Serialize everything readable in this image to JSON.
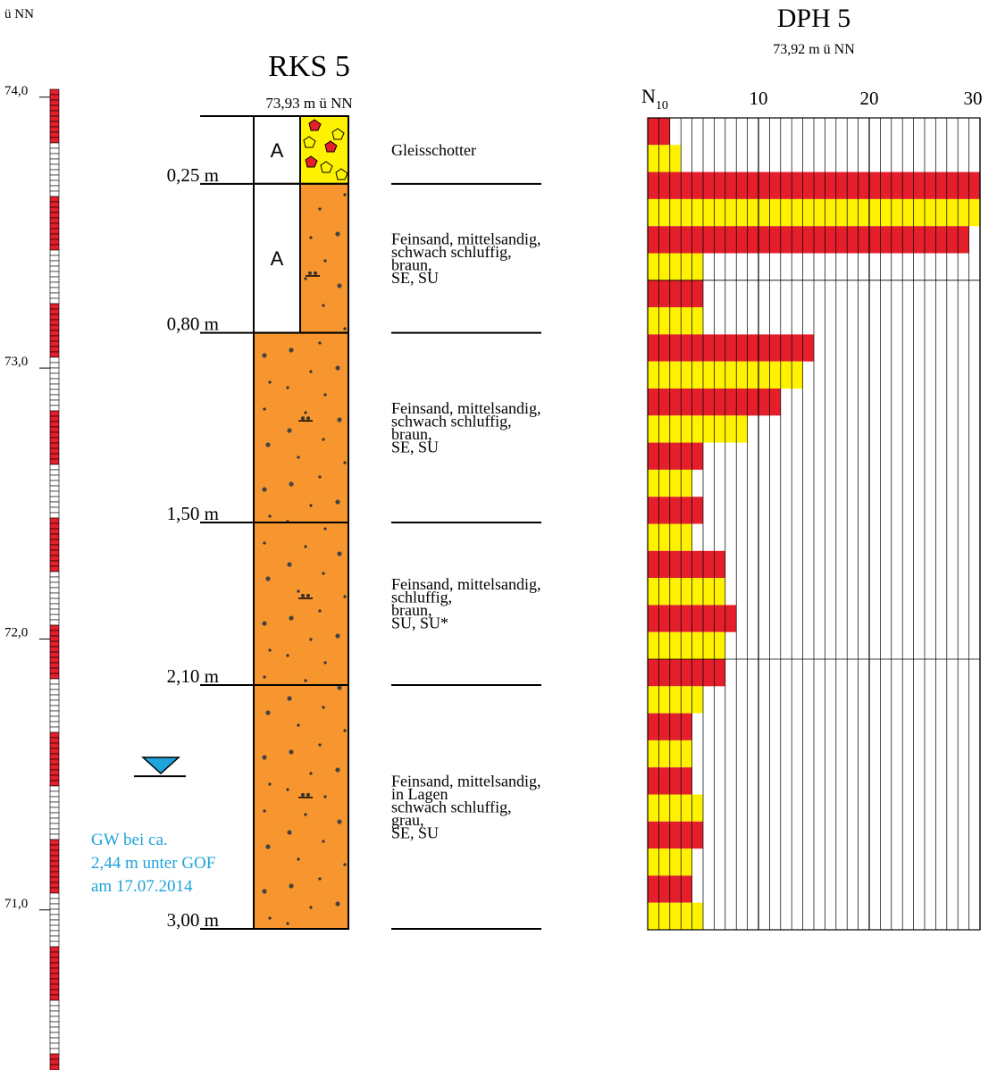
{
  "elevation_axis": {
    "unit_label": "ü NN",
    "ticks": [
      {
        "value": 74.0,
        "label": "74,0"
      },
      {
        "value": 73.0,
        "label": "73,0"
      },
      {
        "value": 72.0,
        "label": "72,0"
      },
      {
        "value": 71.0,
        "label": "71,0"
      }
    ]
  },
  "boring": {
    "title": "RKS 5",
    "elevation_label": "73,93 m ü NN",
    "layers": [
      {
        "top": 0.0,
        "bottom": 0.25,
        "depth_label": "0,25 m",
        "fill_label": "A",
        "material": "gravel",
        "description": [
          "Gleisschotter"
        ]
      },
      {
        "top": 0.25,
        "bottom": 0.8,
        "depth_label": "0,80 m",
        "fill_label": "A",
        "material": "sand",
        "description": [
          "Feinsand, mittelsandig,",
          "schwach schluffig,",
          "braun,",
          "SE, SU"
        ]
      },
      {
        "top": 0.8,
        "bottom": 1.5,
        "depth_label": "1,50 m",
        "fill_label": "",
        "material": "sand",
        "description": [
          "Feinsand, mittelsandig,",
          "schwach schluffig,",
          "braun,",
          "SE, SU"
        ]
      },
      {
        "top": 1.5,
        "bottom": 2.1,
        "depth_label": "2,10 m",
        "fill_label": "",
        "material": "sand",
        "description": [
          "Feinsand, mittelsandig,",
          "schluffig,",
          "braun,",
          "SU, SU*"
        ]
      },
      {
        "top": 2.1,
        "bottom": 3.0,
        "depth_label": "3,00 m",
        "fill_label": "",
        "material": "sand",
        "description": [
          "Feinsand, mittelsandig,",
          "in Lagen",
          "schwach schluffig,",
          "grau,",
          "SE, SU"
        ]
      }
    ],
    "groundwater": {
      "depth": 2.44,
      "lines": [
        "GW bei ca.",
        "2,44 m unter GOF",
        "am 17.07.2014"
      ]
    }
  },
  "probe": {
    "title": "DPH 5",
    "elevation_label": "73,92 m ü NN",
    "axis_label_main": "N",
    "axis_label_sub": "10",
    "chart_data": {
      "type": "bar",
      "orientation": "horizontal",
      "title": "DPH 5",
      "xlabel": "N10",
      "xlim": [
        0,
        30
      ],
      "x_ticks": [
        10,
        20,
        30
      ],
      "depth_step_m": 0.1,
      "values": [
        2,
        3,
        30,
        30,
        29,
        5,
        5,
        5,
        15,
        14,
        12,
        9,
        5,
        4,
        5,
        4,
        7,
        7,
        8,
        7,
        7,
        5,
        4,
        4,
        4,
        5,
        5,
        4,
        4,
        5
      ],
      "colors": [
        "#e41e2b",
        "#fff200"
      ]
    }
  }
}
